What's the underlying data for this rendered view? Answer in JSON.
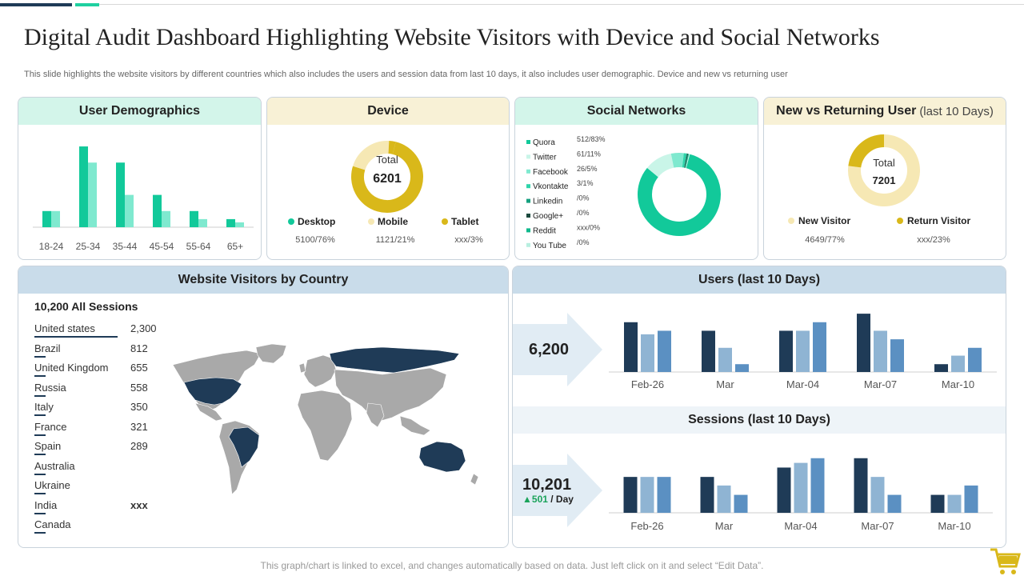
{
  "header": {
    "title": "Digital Audit Dashboard Highlighting Website Visitors with Device and Social Networks",
    "subtitle": "This slide highlights the website visitors by different countries which also includes the users and session data from last 10 days, it also includes user demographic. Device and new vs returning user"
  },
  "footer": {
    "note": "This graph/chart is linked to excel, and changes automatically based on data. Just left click on it and select “Edit Data”."
  },
  "colors": {
    "mint": "#d3f5ea",
    "cream": "#f8f1d6",
    "blue_head": "#c9dcea",
    "green_dark": "#12c99a",
    "green_light": "#7fe9cf",
    "gold": "#d9b81a",
    "gold_light": "#f6e8b4",
    "navy": "#1f3b57",
    "steel": "#8fb4d3",
    "mid_blue": "#5b90c2"
  },
  "demographics": {
    "title": "User Demographics"
  },
  "device": {
    "title": "Device",
    "total_label": "Total",
    "total_value": "6201",
    "legend": [
      {
        "name": "Desktop",
        "value": "5100/76%",
        "color": "#12c99a"
      },
      {
        "name": "Mobile",
        "value": "1121/21%",
        "color": "#f6e8b4"
      },
      {
        "name": "Tablet",
        "value": "xxx/3%",
        "color": "#d9b81a"
      }
    ]
  },
  "social": {
    "title": "Social Networks",
    "items": [
      {
        "name": "Quora",
        "value": "512/83%",
        "color": "#12c99a"
      },
      {
        "name": "Twitter",
        "value": "61/11%",
        "color": "#c9f5e8"
      },
      {
        "name": "Facebook",
        "value": "26/5%",
        "color": "#7fe9cf"
      },
      {
        "name": "Vkontakte",
        "value": "3/1%",
        "color": "#2fd4aa"
      },
      {
        "name": "Linkedin",
        "value": "/0%",
        "color": "#15a07f"
      },
      {
        "name": "Google+",
        "value": "/0%",
        "color": "#1b4a3e"
      },
      {
        "name": "Reddit",
        "value": "xxx/0%",
        "color": "#0fb98c"
      },
      {
        "name": "You Tube",
        "value": "/0%",
        "color": "#b8efe0"
      }
    ]
  },
  "returning": {
    "title": "New vs Returning User",
    "title_suffix": "(last 10 Days)",
    "total_label": "Total",
    "total_value": "7201",
    "legend": [
      {
        "name": "New Visitor",
        "value": "4649/77%",
        "color": "#f6e8b4"
      },
      {
        "name": "Return Visitor",
        "value": "xxx/23%",
        "color": "#d9b81a"
      }
    ]
  },
  "country": {
    "title": "Website Visitors by Country",
    "sessions": "10,200 All Sessions",
    "rows": [
      {
        "name": "United states",
        "value": "2,300"
      },
      {
        "name": "Brazil",
        "value": "812"
      },
      {
        "name": "United Kingdom",
        "value": "655"
      },
      {
        "name": "Russia",
        "value": "558"
      },
      {
        "name": "Italy",
        "value": "350"
      },
      {
        "name": "France",
        "value": "321"
      },
      {
        "name": "Spain",
        "value": "289"
      },
      {
        "name": "Australia",
        "value": ""
      },
      {
        "name": "Ukraine",
        "value": ""
      },
      {
        "name": "India",
        "value": "xxx"
      },
      {
        "name": "Canada",
        "value": ""
      }
    ]
  },
  "users": {
    "title": "Users (last 10 Days)",
    "total": "6,200"
  },
  "sessions": {
    "title": "Sessions (last 10 Days)",
    "total": "10,201",
    "per_day_arrow": "▲",
    "per_day_value": "501",
    "per_day_suffix": "/ Day"
  },
  "chart_data": [
    {
      "type": "bar",
      "title": "User Demographics",
      "categories": [
        "18-24",
        "25-34",
        "35-44",
        "45-54",
        "55-64",
        "65+"
      ],
      "series": [
        {
          "name": "Series 1",
          "values": [
            20,
            100,
            80,
            40,
            20,
            10
          ]
        },
        {
          "name": "Series 2",
          "values": [
            20,
            80,
            40,
            20,
            10,
            6
          ]
        }
      ],
      "ylim": [
        0,
        105
      ]
    },
    {
      "type": "pie",
      "title": "Device",
      "categories": [
        "Desktop",
        "Mobile",
        "Tablet"
      ],
      "values": [
        76,
        21,
        3
      ]
    },
    {
      "type": "pie",
      "title": "Social Networks",
      "categories": [
        "Quora",
        "Twitter",
        "Facebook",
        "Vkontakte",
        "Linkedin",
        "Google+",
        "Reddit",
        "You Tube"
      ],
      "values": [
        83,
        11,
        5,
        1,
        0,
        0,
        0,
        0
      ]
    },
    {
      "type": "pie",
      "title": "New vs Returning User (last 10 Days)",
      "categories": [
        "New Visitor",
        "Return Visitor"
      ],
      "values": [
        77,
        23
      ]
    },
    {
      "type": "bar",
      "title": "Users (last 10 Days)",
      "categories": [
        "Feb-26",
        "Mar",
        "Mar-04",
        "Mar-07",
        "Mar-10"
      ],
      "series": [
        {
          "name": "Series 1",
          "values": [
            70,
            58,
            58,
            82,
            11
          ]
        },
        {
          "name": "Series 2",
          "values": [
            53,
            34,
            58,
            58,
            23
          ]
        },
        {
          "name": "Series 3",
          "values": [
            58,
            11,
            70,
            46,
            34
          ]
        }
      ],
      "ylim": [
        0,
        90
      ]
    },
    {
      "type": "bar",
      "title": "Sessions (last 10 Days)",
      "categories": [
        "Feb-26",
        "Mar",
        "Mar-04",
        "Mar-07",
        "Mar-10"
      ],
      "series": [
        {
          "name": "Series 1",
          "values": [
            46,
            46,
            58,
            70,
            23
          ]
        },
        {
          "name": "Series 2",
          "values": [
            46,
            35,
            64,
            46,
            23
          ]
        },
        {
          "name": "Series 3",
          "values": [
            46,
            23,
            70,
            23,
            35
          ]
        }
      ],
      "ylim": [
        0,
        80
      ]
    }
  ]
}
